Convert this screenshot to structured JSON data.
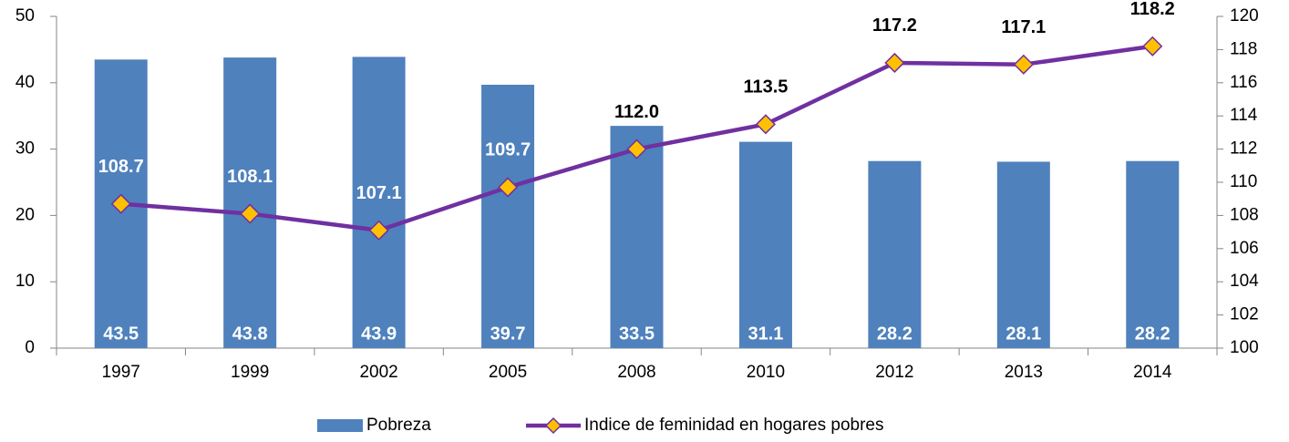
{
  "chart_data": {
    "type": "bar_line",
    "categories": [
      "1997",
      "1999",
      "2002",
      "2005",
      "2008",
      "2010",
      "2012",
      "2013",
      "2014"
    ],
    "series": [
      {
        "name": "Pobreza",
        "type": "bar",
        "color": "#4f81bd",
        "label_color": "#ffffff",
        "values": [
          43.5,
          43.8,
          43.9,
          39.7,
          33.5,
          31.1,
          28.2,
          28.1,
          28.2
        ],
        "value_labels": [
          "43.5",
          "43.8",
          "43.9",
          "39.7",
          "33.5",
          "31.1",
          "28.2",
          "28.1",
          "28.2"
        ]
      },
      {
        "name": "Indice de feminidad en hogares pobres",
        "type": "line",
        "axis": "y2",
        "color": "#7030a0",
        "marker_color": "#ffc000",
        "values": [
          108.7,
          108.1,
          107.1,
          109.7,
          112.0,
          113.5,
          117.2,
          117.1,
          118.2
        ],
        "value_labels": [
          "108.7",
          "108.1",
          "107.1",
          "109.7",
          "112.0",
          "113.5",
          "117.2",
          "117.1",
          "118.2"
        ]
      }
    ],
    "ylim": [
      0,
      50
    ],
    "yticks": [
      0,
      10,
      20,
      30,
      40,
      50
    ],
    "y2lim": [
      100,
      120
    ],
    "y2ticks": [
      100,
      102,
      104,
      106,
      108,
      110,
      112,
      114,
      116,
      118,
      120
    ],
    "legend": "bottom"
  }
}
